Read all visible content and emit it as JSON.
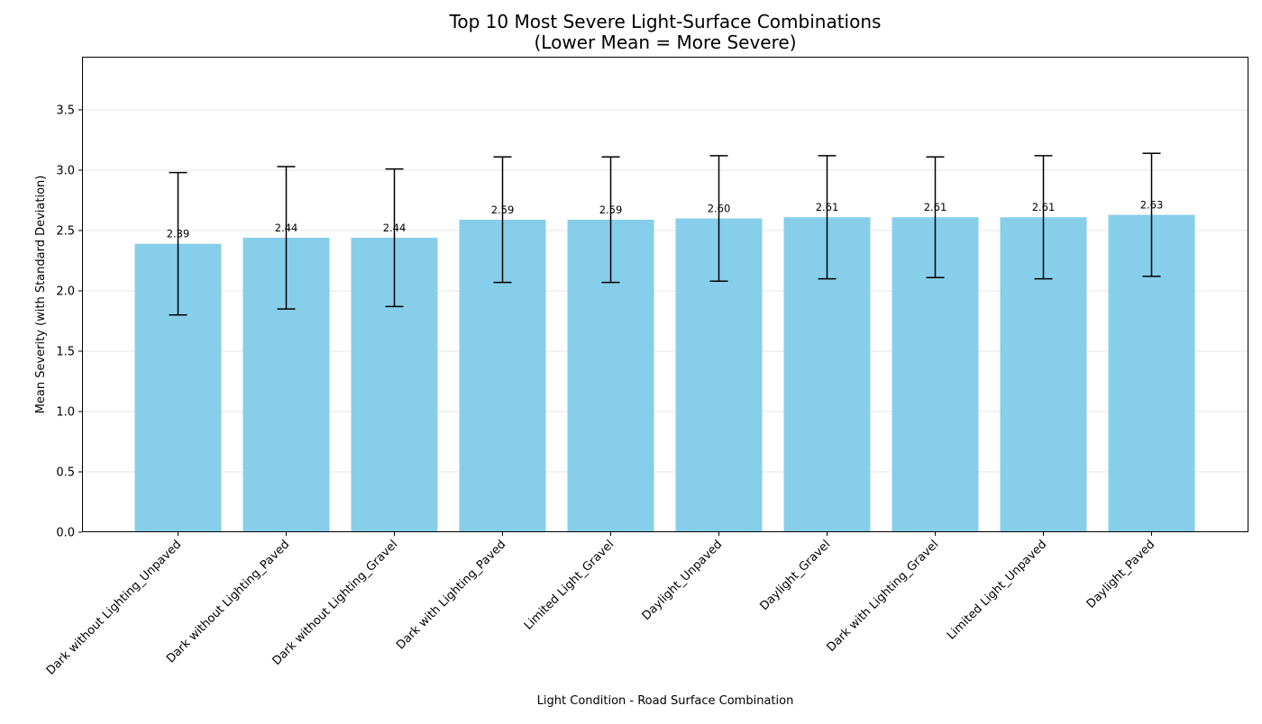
{
  "chart_data": {
    "type": "bar",
    "title": "Top 10 Most Severe Light-Surface Combinations",
    "subtitle": "(Lower Mean = More Severe)",
    "xlabel": "Light Condition - Road Surface Combination",
    "ylabel": "Mean Severity (with Standard Deviation)",
    "ylim": [
      0,
      3.94
    ],
    "yticks": [
      0.0,
      0.5,
      1.0,
      1.5,
      2.0,
      2.5,
      3.0,
      3.5
    ],
    "ytick_labels": [
      "0.0",
      "0.5",
      "1.0",
      "1.5",
      "2.0",
      "2.5",
      "3.0",
      "3.5"
    ],
    "grid": true,
    "error_bars": "standard deviation",
    "categories": [
      "Dark without Lighting_Unpaved",
      "Dark without Lighting_Paved",
      "Dark without Lighting_Gravel",
      "Dark with Lighting_Paved",
      "Limited Light_Gravel",
      "Daylight_Unpaved",
      "Daylight_Gravel",
      "Dark with Lighting_Gravel",
      "Limited Light_Unpaved",
      "Daylight_Paved"
    ],
    "values": [
      2.39,
      2.44,
      2.44,
      2.59,
      2.59,
      2.6,
      2.61,
      2.61,
      2.61,
      2.63
    ],
    "value_labels": [
      "2.39",
      "2.44",
      "2.44",
      "2.59",
      "2.59",
      "2.60",
      "2.61",
      "2.61",
      "2.61",
      "2.63"
    ],
    "errors": [
      0.59,
      0.59,
      0.57,
      0.52,
      0.52,
      0.52,
      0.51,
      0.5,
      0.51,
      0.51
    ],
    "colors": {
      "bar": "#87CEEB",
      "error": "#000000",
      "grid": "#e6e6e6",
      "axis": "#000000"
    }
  }
}
